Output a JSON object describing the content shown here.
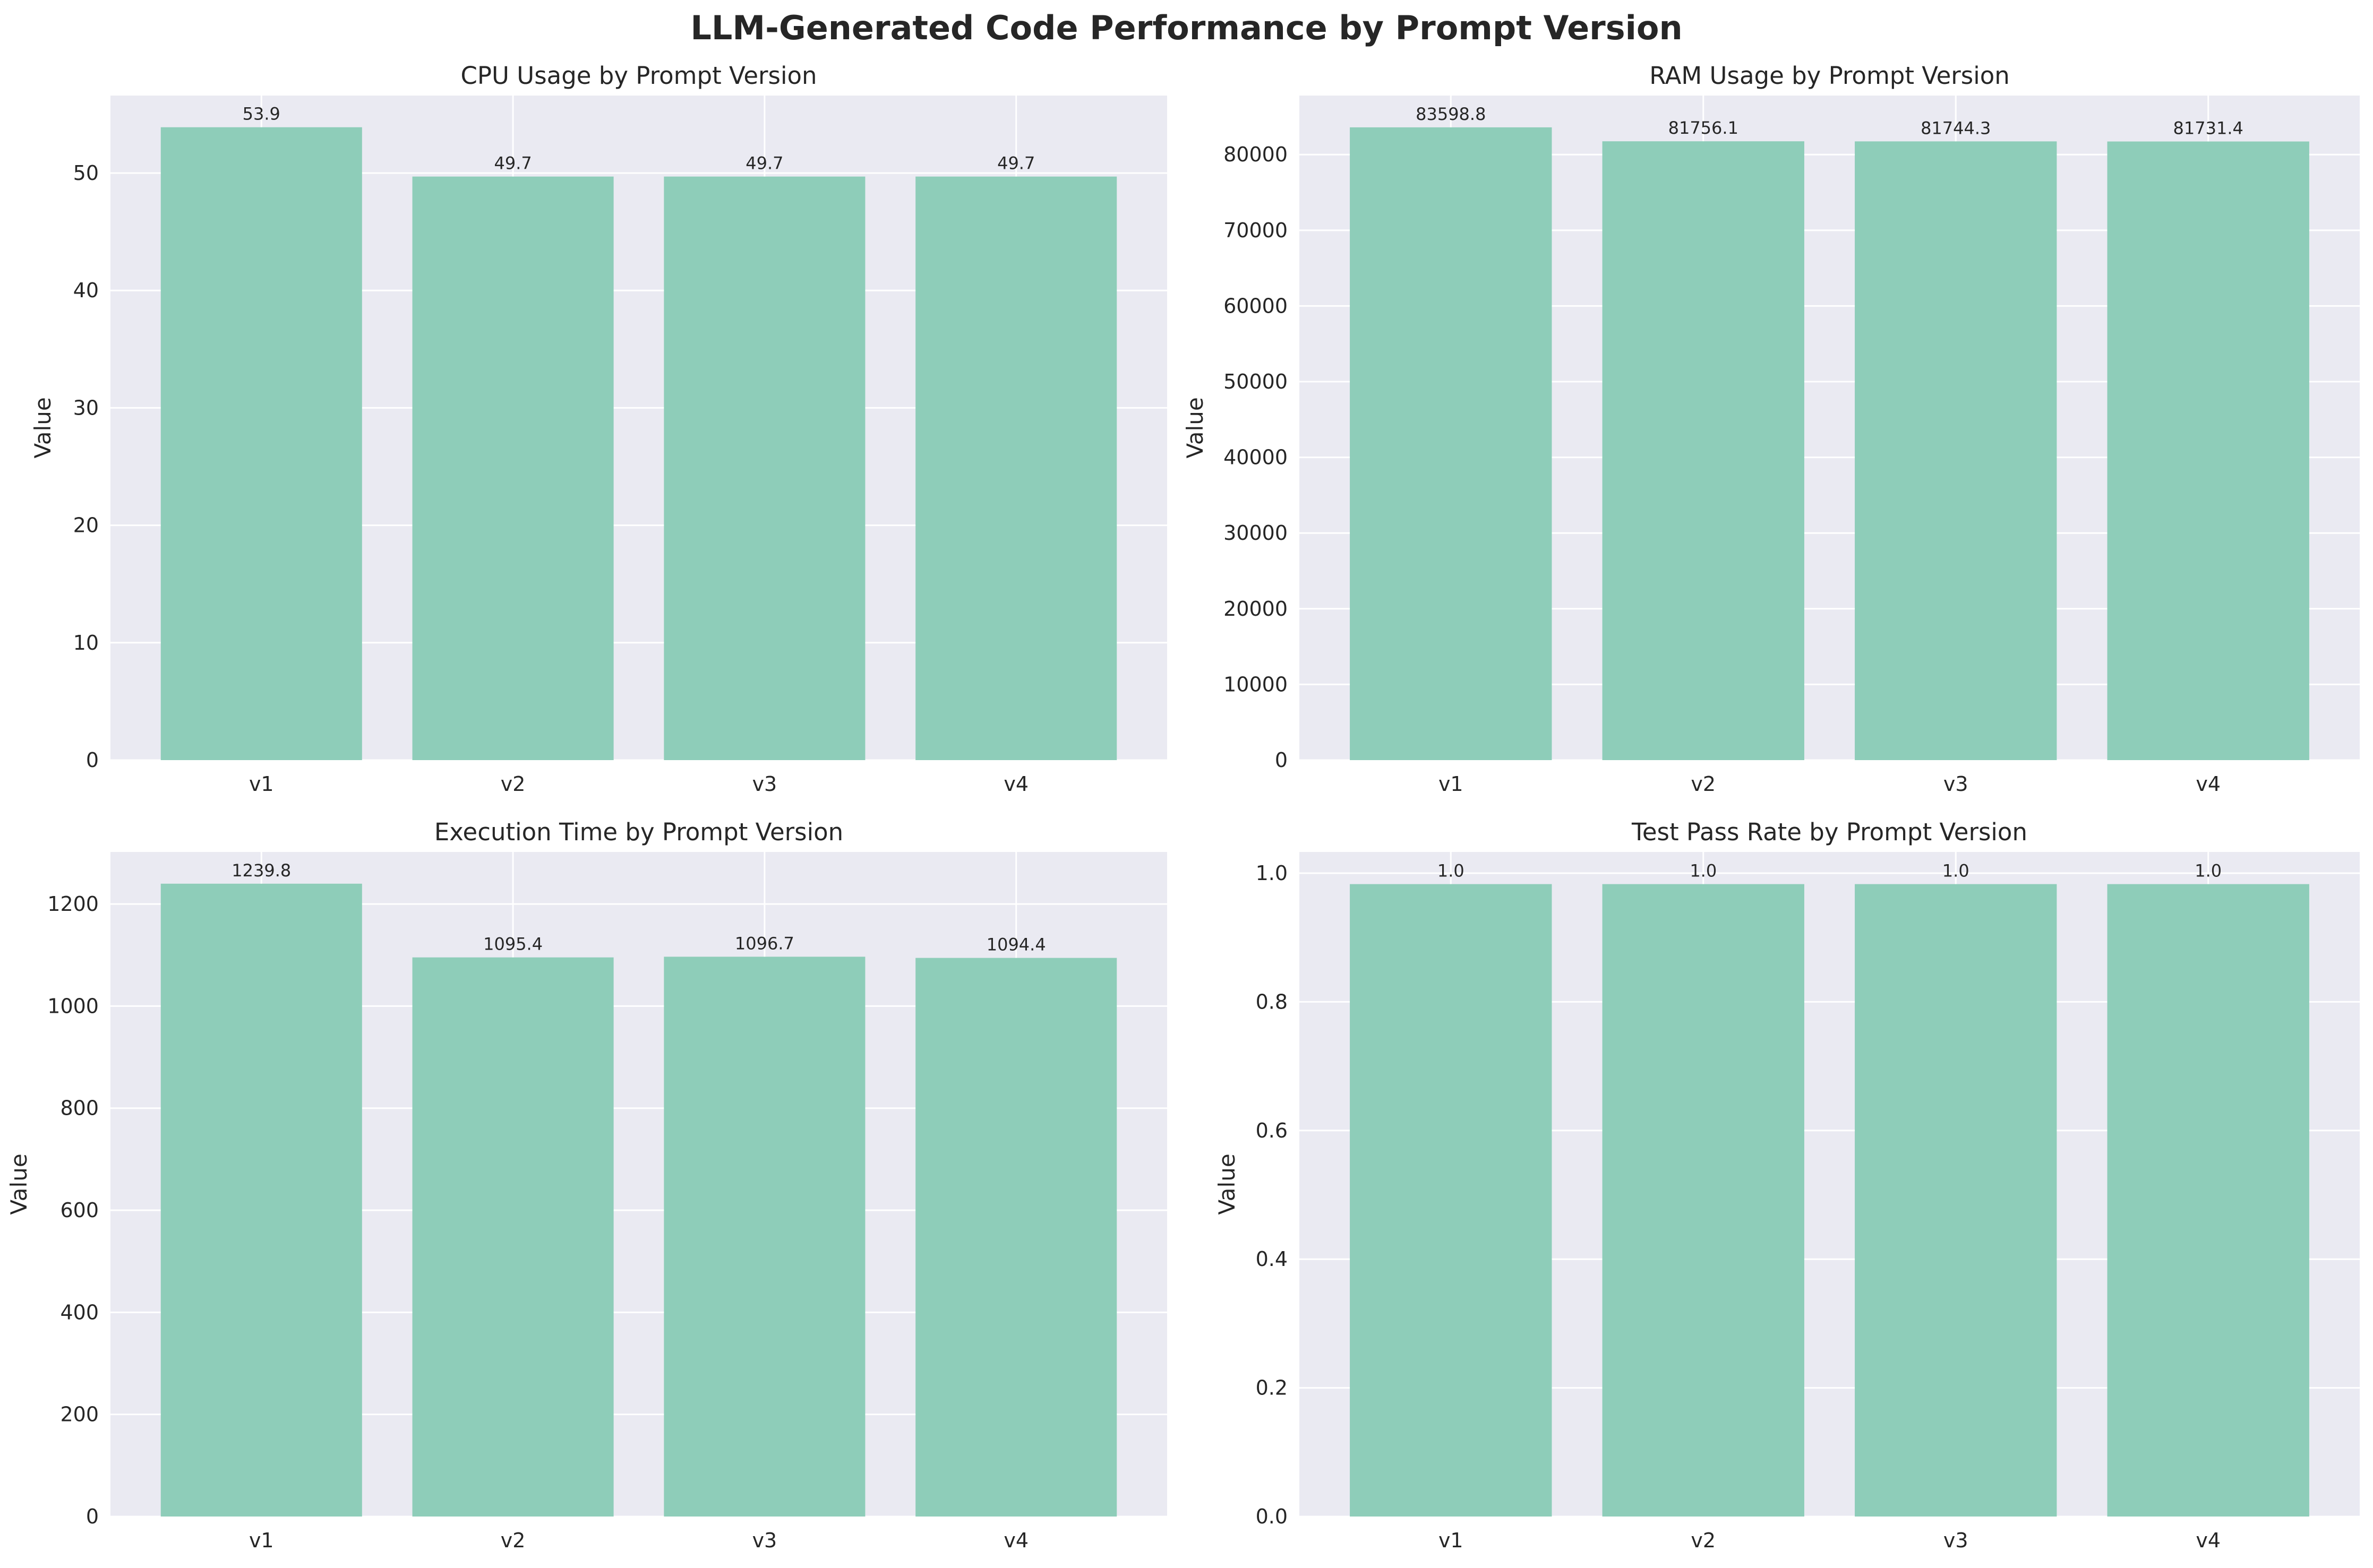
{
  "figure_title": "LLM-Generated Code Performance by Prompt Version",
  "colors": {
    "bar": "#8ecdb9",
    "panel_bg": "#eaeaf2",
    "grid": "#ffffff",
    "text": "#262626"
  },
  "chart_data": [
    {
      "type": "bar",
      "title": "CPU Usage by Prompt Version",
      "ylabel": "Value",
      "categories": [
        "v1",
        "v2",
        "v3",
        "v4"
      ],
      "values": [
        53.9,
        49.7,
        49.7,
        49.7
      ],
      "value_labels": [
        "53.9",
        "49.7",
        "49.7",
        "49.7"
      ],
      "ylim": [
        0,
        56.6
      ],
      "yticks": [
        0,
        10,
        20,
        30,
        40,
        50
      ],
      "ytick_labels": [
        "0",
        "10",
        "20",
        "30",
        "40",
        "50"
      ],
      "grid": true
    },
    {
      "type": "bar",
      "title": "RAM Usage by Prompt Version",
      "ylabel": "Value",
      "categories": [
        "v1",
        "v2",
        "v3",
        "v4"
      ],
      "values": [
        83598.8,
        81756.1,
        81744.3,
        81731.4
      ],
      "value_labels": [
        "83598.8",
        "81756.1",
        "81744.3",
        "81731.4"
      ],
      "ylim": [
        0,
        87800
      ],
      "yticks": [
        0,
        10000,
        20000,
        30000,
        40000,
        50000,
        60000,
        70000,
        80000
      ],
      "ytick_labels": [
        "0",
        "10000",
        "20000",
        "30000",
        "40000",
        "50000",
        "60000",
        "70000",
        "80000"
      ],
      "grid": true
    },
    {
      "type": "bar",
      "title": "Execution Time by Prompt Version",
      "ylabel": "Value",
      "categories": [
        "v1",
        "v2",
        "v3",
        "v4"
      ],
      "values": [
        1239.8,
        1095.4,
        1096.7,
        1094.4
      ],
      "value_labels": [
        "1239.8",
        "1095.4",
        "1096.7",
        "1094.4"
      ],
      "ylim": [
        0,
        1302
      ],
      "yticks": [
        0,
        200,
        400,
        600,
        800,
        1000,
        1200
      ],
      "ytick_labels": [
        "0",
        "200",
        "400",
        "600",
        "800",
        "1000",
        "1200"
      ],
      "grid": true
    },
    {
      "type": "bar",
      "title": "Test Pass Rate by Prompt Version",
      "ylabel": "Value",
      "categories": [
        "v1",
        "v2",
        "v3",
        "v4"
      ],
      "values": [
        0.983,
        0.983,
        0.983,
        0.983
      ],
      "value_labels": [
        "1.0",
        "1.0",
        "1.0",
        "1.0"
      ],
      "ylim": [
        0,
        1.033
      ],
      "yticks": [
        0,
        0.2,
        0.4,
        0.6,
        0.8,
        1.0
      ],
      "ytick_labels": [
        "0.0",
        "0.2",
        "0.4",
        "0.6",
        "0.8",
        "1.0"
      ],
      "grid": true
    }
  ]
}
